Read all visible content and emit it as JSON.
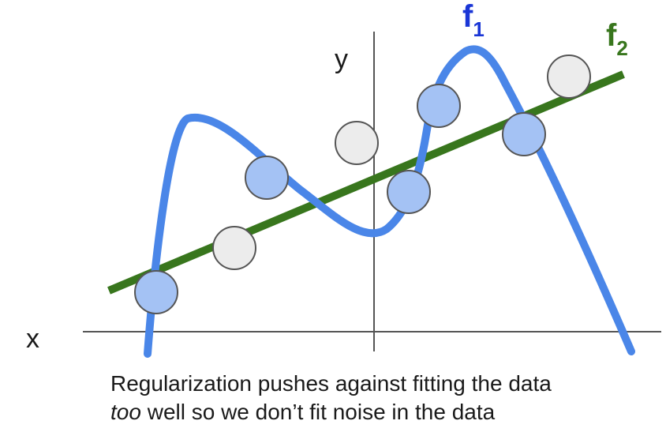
{
  "axes": {
    "x_label": "x",
    "y_label": "y"
  },
  "curves": {
    "f1": {
      "letter": "f",
      "subscript": "1",
      "color": "#4a86e8"
    },
    "f2": {
      "letter": "f",
      "subscript": "2",
      "color": "#38761d"
    }
  },
  "points": {
    "fill_fit": "#a4c2f4",
    "fill_noise": "#ececec",
    "stroke": "#555555"
  },
  "caption": {
    "line1": "Regularization pushes against fitting the data",
    "line2_em": "too",
    "line2_rest": " well so we don’t fit noise in the data"
  }
}
